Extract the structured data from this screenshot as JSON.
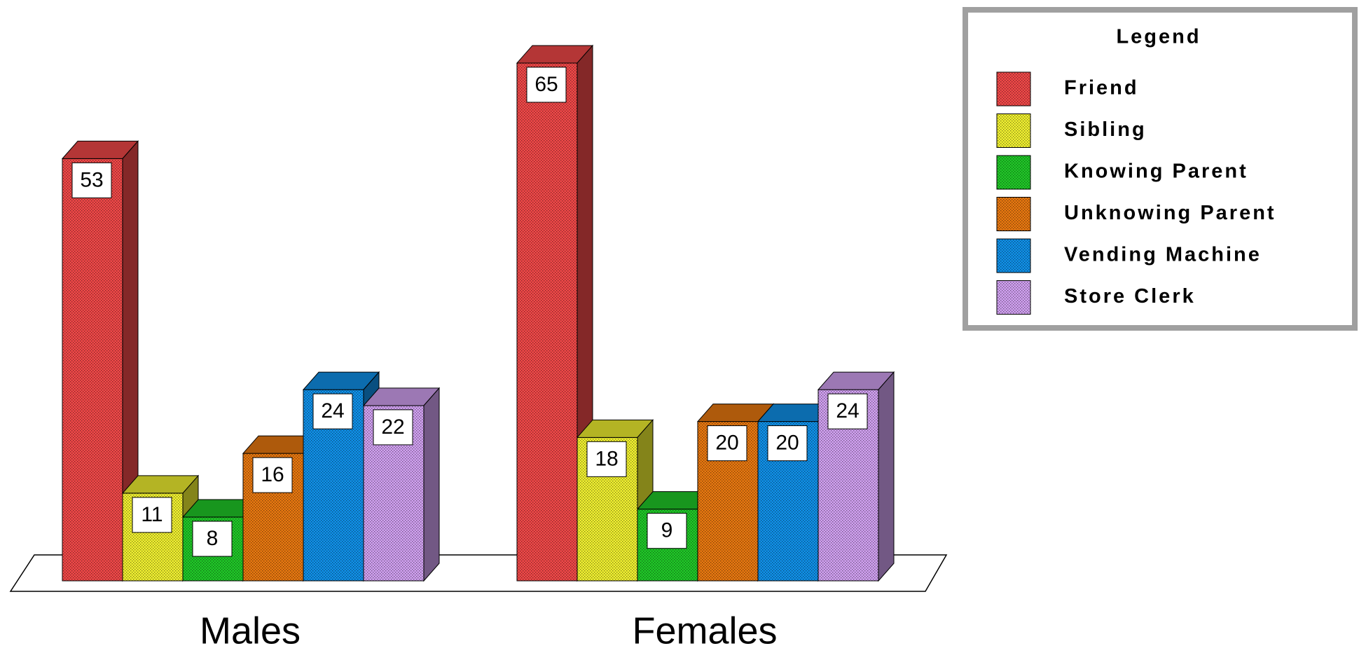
{
  "chart_data": {
    "type": "bar3d",
    "legend_title": "Legend",
    "legend_position": "top-right",
    "categories": [
      "Males",
      "Females"
    ],
    "series": [
      {
        "name": "Friend",
        "color": "#f04848",
        "values": [
          53,
          65
        ]
      },
      {
        "name": "Sibling",
        "color": "#f0f030",
        "values": [
          11,
          18
        ]
      },
      {
        "name": "Knowing Parent",
        "color": "#20c828",
        "values": [
          8,
          9
        ]
      },
      {
        "name": "Unknowing Parent",
        "color": "#e87810",
        "values": [
          16,
          20
        ]
      },
      {
        "name": "Vending Machine",
        "color": "#1090e8",
        "values": [
          24,
          20
        ]
      },
      {
        "name": "Store Clerk",
        "color": "#d0a0f0",
        "values": [
          22,
          24
        ]
      }
    ]
  }
}
